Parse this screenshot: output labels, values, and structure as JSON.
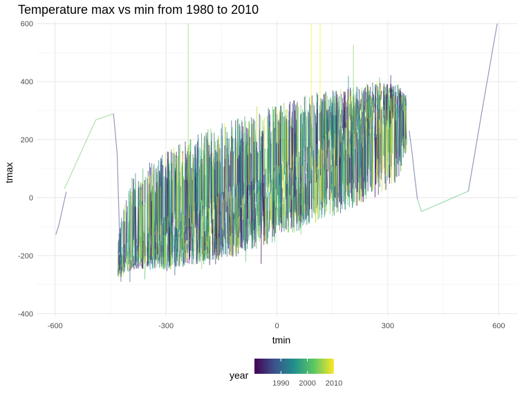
{
  "chart_data": {
    "type": "line",
    "title": "Temperature max vs min from 1980 to 2010",
    "xlabel": "tmin",
    "ylabel": "tmax",
    "xlim": [
      -650,
      650
    ],
    "ylim": [
      -410,
      610
    ],
    "x_ticks": [
      -600,
      -300,
      0,
      300,
      600
    ],
    "y_ticks": [
      -400,
      -200,
      0,
      200,
      400,
      600
    ],
    "grid": true,
    "colour_scale": {
      "variable": "year",
      "palette": "viridis",
      "range": [
        1980,
        2010
      ],
      "breaks": [
        1990,
        2000,
        2010
      ],
      "colors": [
        "#440154",
        "#3b528b",
        "#21908c",
        "#5dc863",
        "#fde725"
      ]
    },
    "legend_position": "bottom",
    "series": [
      {
        "year": 1986,
        "x": [
          -598,
          -590,
          -570
        ],
        "y": [
          -127,
          -95,
          20
        ]
      },
      {
        "year": 2003,
        "x": [
          -575,
          -490,
          -442
        ],
        "y": [
          30,
          268,
          289
        ]
      },
      {
        "year": 1986,
        "x": [
          -442,
          -432,
          -428,
          -422
        ],
        "y": [
          289,
          150,
          -30,
          -290
        ]
      },
      {
        "year": 1986,
        "x": [
          358,
          367,
          372,
          380
        ],
        "y": [
          230,
          140,
          80,
          -5
        ]
      },
      {
        "year": 2001,
        "x": [
          380,
          391,
          518
        ],
        "y": [
          -5,
          -48,
          22
        ]
      },
      {
        "year": 1986,
        "x": [
          518,
          555,
          596
        ],
        "y": [
          22,
          300,
          600
        ]
      },
      {
        "year": 2005,
        "x": [
          -240,
          -240
        ],
        "y": [
          -100,
          600
        ]
      },
      {
        "year": 2010,
        "x": [
          93,
          93
        ],
        "y": [
          100,
          600
        ]
      },
      {
        "year": 2010,
        "x": [
          117,
          117
        ],
        "y": [
          100,
          600
        ]
      },
      {
        "year": 2004,
        "x": [
          207,
          207
        ],
        "y": [
          150,
          527
        ]
      }
    ],
    "cloud_lower": [
      [
        -440,
        -290
      ],
      [
        -390,
        -250
      ],
      [
        -300,
        -250
      ],
      [
        -200,
        -230
      ],
      [
        -100,
        -200
      ],
      [
        0,
        -150
      ],
      [
        100,
        -90
      ],
      [
        200,
        -40
      ],
      [
        270,
        0
      ],
      [
        330,
        60
      ],
      [
        355,
        190
      ]
    ],
    "cloud_upper": [
      [
        -440,
        -150
      ],
      [
        -390,
        80
      ],
      [
        -300,
        160
      ],
      [
        -200,
        230
      ],
      [
        -100,
        280
      ],
      [
        0,
        320
      ],
      [
        100,
        360
      ],
      [
        200,
        380
      ],
      [
        270,
        400
      ],
      [
        330,
        390
      ],
      [
        355,
        300
      ]
    ],
    "cloud_center": [
      [
        -440,
        -220
      ],
      [
        -300,
        -130
      ],
      [
        -200,
        -80
      ],
      [
        -100,
        -30
      ],
      [
        0,
        40
      ],
      [
        100,
        120
      ],
      [
        200,
        210
      ],
      [
        270,
        280
      ],
      [
        355,
        330
      ]
    ]
  }
}
